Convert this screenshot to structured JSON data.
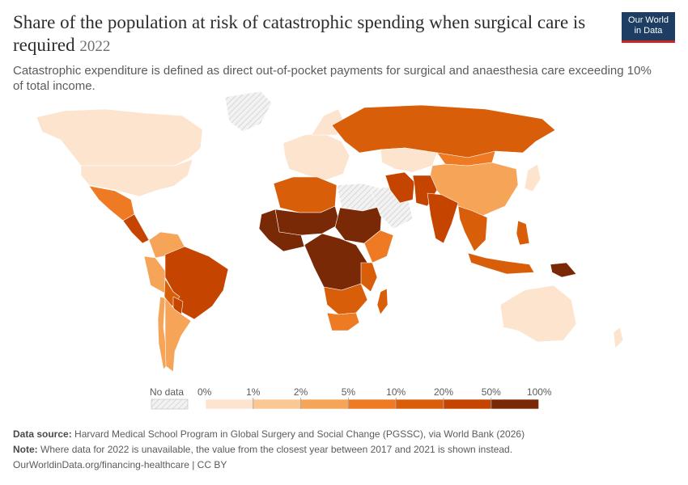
{
  "header": {
    "title": "Share of the population at risk of catastrophic spending when surgical care is required",
    "year": "2022",
    "subtitle": "Catastrophic expenditure is defined as direct out-of-pocket payments for surgical and anaesthesia care exceeding 10% of total income."
  },
  "logo": {
    "line1": "Our World",
    "line2": "in Data"
  },
  "legend": {
    "no_data_label": "No data",
    "ticks": [
      "0%",
      "1%",
      "2%",
      "5%",
      "10%",
      "20%",
      "50%",
      "100%"
    ],
    "colors": [
      "#fde4cf",
      "#fbc894",
      "#f6a458",
      "#ee7a23",
      "#d95e0a",
      "#c54400",
      "#7a2906"
    ],
    "no_data_color": "#eeeeee"
  },
  "footer": {
    "source_label": "Data source:",
    "source_text": "Harvard Medical School Program in Global Surgery and Social Change (PGSSC), via World Bank (2026)",
    "note_label": "Note:",
    "note_text": "Where data for 2022 is unavailable, the value from the closest year between 2017 and 2021 is shown instead.",
    "url_text": "OurWorldinData.org/financing-healthcare | CC BY"
  },
  "map": {
    "regions": [
      {
        "name": "canada-alaska",
        "band": 0
      },
      {
        "name": "united-states",
        "band": 0
      },
      {
        "name": "mexico",
        "band": 3
      },
      {
        "name": "central-america",
        "band": 5
      },
      {
        "name": "greenland",
        "band": -1
      },
      {
        "name": "colombia-venezuela",
        "band": 2
      },
      {
        "name": "peru",
        "band": 2
      },
      {
        "name": "brazil",
        "band": 5
      },
      {
        "name": "bolivia",
        "band": 4
      },
      {
        "name": "paraguay",
        "band": 5
      },
      {
        "name": "chile",
        "band": 2
      },
      {
        "name": "argentina",
        "band": 2
      },
      {
        "name": "europe",
        "band": 0
      },
      {
        "name": "scandinavia",
        "band": 0
      },
      {
        "name": "russia",
        "band": 4
      },
      {
        "name": "kazakhstan",
        "band": 0
      },
      {
        "name": "mongolia",
        "band": 3
      },
      {
        "name": "china",
        "band": 2
      },
      {
        "name": "north-africa",
        "band": 4
      },
      {
        "name": "libya-egypt",
        "band": -1
      },
      {
        "name": "sahel",
        "band": 6
      },
      {
        "name": "west-africa",
        "band": 6
      },
      {
        "name": "sudan",
        "band": 6
      },
      {
        "name": "ethiopia",
        "band": 3
      },
      {
        "name": "central-africa",
        "band": 6
      },
      {
        "name": "east-africa",
        "band": 4
      },
      {
        "name": "southern-africa",
        "band": 4
      },
      {
        "name": "south-africa",
        "band": 3
      },
      {
        "name": "madagascar",
        "band": 4
      },
      {
        "name": "arabia",
        "band": -1
      },
      {
        "name": "iran",
        "band": 5
      },
      {
        "name": "pakistan-afghanistan",
        "band": 5
      },
      {
        "name": "india",
        "band": 5
      },
      {
        "name": "southeast-asia",
        "band": 4
      },
      {
        "name": "indonesia",
        "band": 4
      },
      {
        "name": "papua",
        "band": 6
      },
      {
        "name": "philippines",
        "band": 4
      },
      {
        "name": "japan",
        "band": 0
      },
      {
        "name": "australia",
        "band": 0
      },
      {
        "name": "new-zealand",
        "band": 0
      }
    ]
  }
}
